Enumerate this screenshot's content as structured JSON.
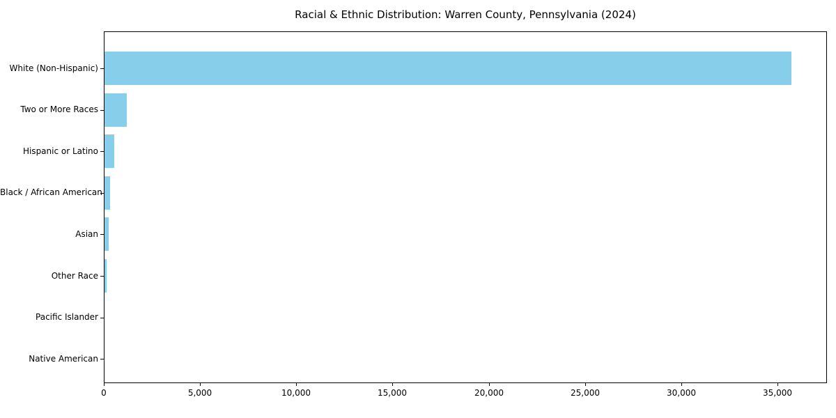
{
  "chart_data": {
    "type": "bar",
    "orientation": "horizontal",
    "title": "Racial & Ethnic Distribution: Warren County, Pennsylvania (2024)",
    "categories": [
      "White (Non-Hispanic)",
      "Two or More Races",
      "Hispanic or Latino",
      "Black / African American",
      "Asian",
      "Other Race",
      "Pacific Islander",
      "Native American"
    ],
    "values": [
      35700,
      1150,
      500,
      280,
      200,
      110,
      0,
      0
    ],
    "xlabel": "",
    "ylabel": "",
    "xlim": [
      0,
      37500
    ],
    "x_ticks": [
      0,
      5000,
      10000,
      15000,
      20000,
      25000,
      30000,
      35000
    ],
    "x_tick_labels": [
      "0",
      "5,000",
      "10,000",
      "15,000",
      "20,000",
      "25,000",
      "30,000",
      "35,000"
    ],
    "bar_color": "#87CEEB",
    "spine_color": "#000000",
    "background_color": "#ffffff",
    "grid": false,
    "legend": null
  }
}
